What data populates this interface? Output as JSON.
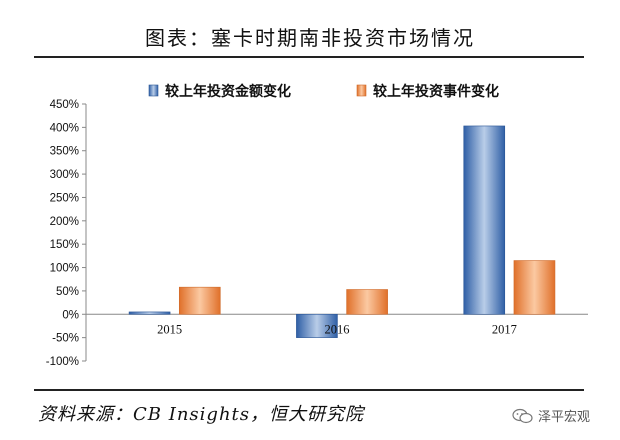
{
  "title": "图表：塞卡时期南非投资市场情况",
  "source": "资料来源：CB Insights，恒大研究院",
  "watermark": "泽平宏观",
  "chart_data": {
    "type": "bar",
    "categories": [
      "2015",
      "2016",
      "2017"
    ],
    "series": [
      {
        "name": "较上年投资金额变化",
        "values": [
          5,
          -50,
          403
        ],
        "color": "#4f7fc0"
      },
      {
        "name": "较上年投资事件变化",
        "values": [
          58,
          53,
          115
        ],
        "color": "#f0904a"
      }
    ],
    "ylim": [
      -100,
      450
    ],
    "yticks": [
      "-100%",
      "-50%",
      "0%",
      "50%",
      "100%",
      "150%",
      "200%",
      "250%",
      "300%",
      "350%",
      "400%",
      "450%"
    ],
    "ytick_values": [
      -100,
      -50,
      0,
      50,
      100,
      150,
      200,
      250,
      300,
      350,
      400,
      450
    ],
    "legend": "top",
    "grid": false
  }
}
